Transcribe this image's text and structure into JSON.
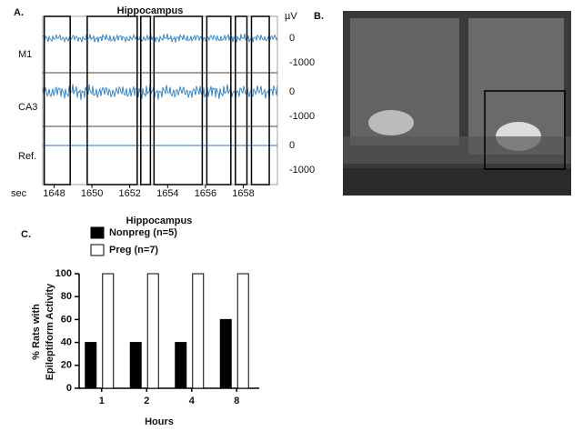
{
  "panel_a": {
    "label": "A.",
    "title": "Hippocampus",
    "unit": "µV",
    "x_label": "sec",
    "xlim": [
      1647.4,
      1659.8
    ],
    "xticks": [
      1648,
      1650,
      1652,
      1654,
      1656,
      1658
    ],
    "windows": [
      [
        1647.48,
        1648.85
      ],
      [
        1649.75,
        1652.39
      ],
      [
        1652.58,
        1653.09
      ],
      [
        1653.28,
        1655.83
      ],
      [
        1656.07,
        1657.34
      ],
      [
        1657.58,
        1658.19
      ],
      [
        1658.43,
        1659.37
      ]
    ],
    "traces": [
      {
        "name": "M1",
        "yticks": [
          0,
          -1000
        ]
      },
      {
        "name": "CA3",
        "yticks": [
          0,
          -1000
        ]
      },
      {
        "name": "Ref.",
        "yticks": [
          0,
          -1000
        ]
      }
    ]
  },
  "panel_b": {
    "label": "B."
  },
  "panel_c": {
    "label": "C."
  },
  "chart_data": {
    "type": "bar",
    "title": "Hippocampus",
    "x_label": "Hours",
    "y_label": [
      "% Rats with",
      "Epileptiform Activity"
    ],
    "categories": [
      "1",
      "2",
      "4",
      "8"
    ],
    "series": [
      {
        "name": "Nonpreg (n=5)",
        "color": "#000000",
        "values": [
          40,
          40,
          40,
          60
        ]
      },
      {
        "name": "Preg (n=7)",
        "color": "#ffffff",
        "values": [
          100,
          100,
          100,
          100
        ]
      }
    ],
    "ylim": [
      0,
      100
    ],
    "yticks": [
      0,
      20,
      40,
      60,
      80,
      100
    ]
  }
}
